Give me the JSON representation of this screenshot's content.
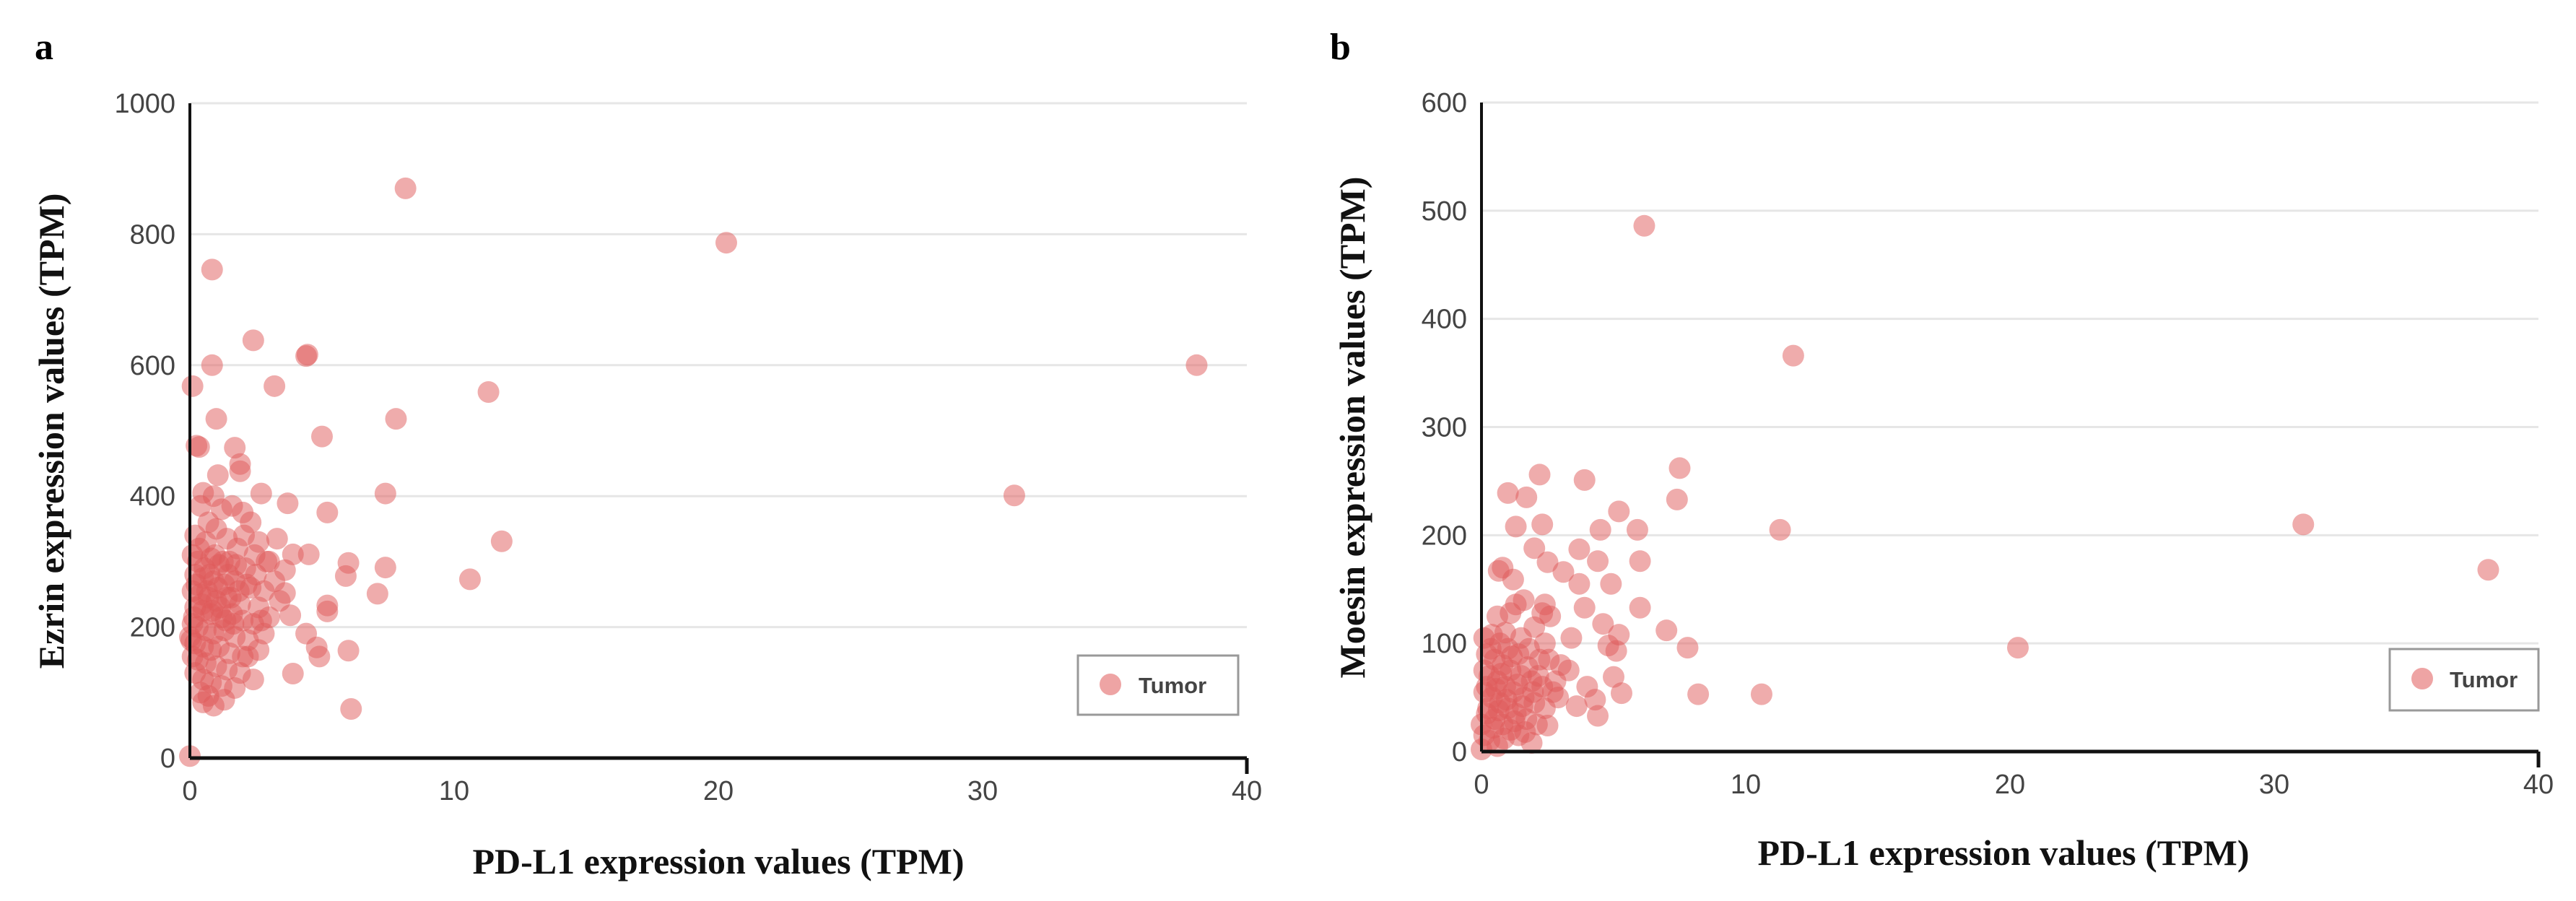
{
  "chart_data": [
    {
      "type": "scatter",
      "panel_label": "a",
      "xlabel": "PD-L1 expression values (TPM)",
      "ylabel": "Ezrin expression values (TPM)",
      "xlim": [
        0,
        40
      ],
      "ylim": [
        0,
        1000
      ],
      "xticks": [
        "0",
        "10",
        "20",
        "30",
        "40"
      ],
      "yticks": [
        "0",
        "200",
        "400",
        "600",
        "800",
        "1000"
      ],
      "grid": true,
      "legend": {
        "position": "bottom-right",
        "entries": [
          "Tumor"
        ]
      },
      "series": [
        {
          "name": "Tumor",
          "color": "#e05a5a",
          "points": [
            [
              8.16,
              870
            ],
            [
              20.3,
              787
            ],
            [
              38.1,
              600
            ],
            [
              31.2,
              401
            ],
            [
              0.84,
              746
            ],
            [
              2.4,
              638
            ],
            [
              4.4,
              614
            ],
            [
              4.45,
              616
            ],
            [
              0.84,
              600
            ],
            [
              0.1,
              568
            ],
            [
              3.2,
              568
            ],
            [
              11.3,
              559
            ],
            [
              1.0,
              518
            ],
            [
              7.8,
              518
            ],
            [
              5.0,
              491
            ],
            [
              0.25,
              477
            ],
            [
              0.35,
              475
            ],
            [
              1.7,
              474
            ],
            [
              1.9,
              449
            ],
            [
              1.9,
              438
            ],
            [
              1.06,
              432
            ],
            [
              2.7,
              404
            ],
            [
              7.4,
              404
            ],
            [
              3.7,
              389
            ],
            [
              5.2,
              375
            ],
            [
              11.8,
              331
            ],
            [
              10.6,
              273
            ],
            [
              7.4,
              291
            ],
            [
              7.1,
              251
            ],
            [
              6.0,
              298
            ],
            [
              5.9,
              278
            ],
            [
              4.5,
              311
            ],
            [
              3.9,
              311
            ],
            [
              6.0,
              164
            ],
            [
              6.1,
              75
            ],
            [
              0,
              3
            ],
            [
              4.9,
              155
            ],
            [
              4.8,
              169
            ],
            [
              5.2,
              224
            ],
            [
              5.2,
              233
            ],
            [
              3.9,
              129
            ],
            [
              4.4,
              190
            ],
            [
              3.8,
              218
            ],
            [
              3.6,
              252
            ],
            [
              3.6,
              287
            ],
            [
              3.3,
              335
            ],
            [
              3.0,
              300
            ],
            [
              2.4,
              120
            ],
            [
              1.7,
              107
            ],
            [
              1.3,
              89
            ],
            [
              2.2,
              155
            ],
            [
              0.5,
              405
            ],
            [
              0.9,
              400
            ],
            [
              1.2,
              380
            ],
            [
              0.4,
              385
            ],
            [
              1.6,
              385
            ],
            [
              2.0,
              375
            ],
            [
              2.3,
              360
            ],
            [
              0.7,
              360
            ],
            [
              1.0,
              350
            ],
            [
              0.2,
              340
            ],
            [
              0.6,
              330
            ],
            [
              1.4,
              335
            ],
            [
              1.8,
              320
            ],
            [
              2.6,
              330
            ],
            [
              2.9,
              300
            ],
            [
              0.1,
              310
            ],
            [
              0.3,
              300
            ],
            [
              0.8,
              305
            ],
            [
              1.1,
              295
            ],
            [
              1.5,
              300
            ],
            [
              2.1,
              290
            ],
            [
              2.5,
              280
            ],
            [
              0.2,
              280
            ],
            [
              0.5,
              275
            ],
            [
              0.9,
              270
            ],
            [
              1.3,
              265
            ],
            [
              1.7,
              270
            ],
            [
              2.3,
              260
            ],
            [
              2.8,
              255
            ],
            [
              0.1,
              255
            ],
            [
              0.4,
              250
            ],
            [
              0.7,
              245
            ],
            [
              1.0,
              240
            ],
            [
              1.4,
              245
            ],
            [
              1.9,
              235
            ],
            [
              2.6,
              230
            ],
            [
              3.4,
              240
            ],
            [
              0.2,
              230
            ],
            [
              0.5,
              225
            ],
            [
              0.8,
              220
            ],
            [
              1.2,
              215
            ],
            [
              1.6,
              220
            ],
            [
              2.0,
              210
            ],
            [
              2.4,
              205
            ],
            [
              3.0,
              215
            ],
            [
              0.1,
              205
            ],
            [
              0.3,
              200
            ],
            [
              0.6,
              195
            ],
            [
              0.9,
              190
            ],
            [
              1.3,
              195
            ],
            [
              1.7,
              185
            ],
            [
              2.2,
              180
            ],
            [
              2.8,
              190
            ],
            [
              0.05,
              180
            ],
            [
              0.2,
              175
            ],
            [
              0.5,
              170
            ],
            [
              0.8,
              165
            ],
            [
              1.1,
              170
            ],
            [
              1.5,
              160
            ],
            [
              2.0,
              155
            ],
            [
              2.6,
              165
            ],
            [
              0.1,
              155
            ],
            [
              0.3,
              150
            ],
            [
              0.6,
              145
            ],
            [
              1.0,
              140
            ],
            [
              1.4,
              135
            ],
            [
              1.9,
              130
            ],
            [
              0.2,
              130
            ],
            [
              0.5,
              120
            ],
            [
              0.8,
              115
            ],
            [
              1.2,
              110
            ],
            [
              0.4,
              100
            ],
            [
              0.7,
              95
            ],
            [
              0.5,
              85
            ],
            [
              0.9,
              80
            ],
            [
              0.0,
              185
            ],
            [
              0.15,
              215
            ],
            [
              0.25,
              265
            ],
            [
              0.35,
              320
            ],
            [
              0.45,
              235
            ],
            [
              0.55,
              290
            ],
            [
              0.65,
              255
            ],
            [
              0.75,
              280
            ],
            [
              0.85,
              225
            ],
            [
              0.95,
              310
            ],
            [
              1.05,
              260
            ],
            [
              1.15,
              230
            ],
            [
              1.25,
              300
            ],
            [
              1.35,
              210
            ],
            [
              1.45,
              280
            ],
            [
              1.55,
              245
            ],
            [
              1.65,
              205
            ],
            [
              1.75,
              295
            ],
            [
              1.85,
              255
            ],
            [
              2.05,
              340
            ],
            [
              2.15,
              265
            ],
            [
              2.45,
              310
            ],
            [
              2.7,
              210
            ],
            [
              3.2,
              270
            ]
          ]
        }
      ]
    },
    {
      "type": "scatter",
      "panel_label": "b",
      "xlabel": "PD-L1 expression values (TPM)",
      "ylabel": "Moesin expression values (TPM)",
      "xlim": [
        0,
        40
      ],
      "ylim": [
        0,
        600
      ],
      "xticks": [
        "0",
        "10",
        "20",
        "30",
        "40"
      ],
      "yticks": [
        "0",
        "100",
        "200",
        "300",
        "400",
        "500",
        "600"
      ],
      "grid": true,
      "legend": {
        "position": "bottom-right",
        "entries": [
          "Tumor"
        ]
      },
      "series": [
        {
          "name": "Tumor",
          "color": "#e05a5a",
          "points": [
            [
              6.16,
              486
            ],
            [
              11.8,
              366
            ],
            [
              7.5,
              262
            ],
            [
              7.4,
              233
            ],
            [
              2.2,
              256
            ],
            [
              3.9,
              251
            ],
            [
              1.0,
              239
            ],
            [
              1.7,
              235
            ],
            [
              5.2,
              222
            ],
            [
              1.3,
              208
            ],
            [
              2.3,
              210
            ],
            [
              4.5,
              205
            ],
            [
              5.9,
              205
            ],
            [
              11.3,
              205
            ],
            [
              31.1,
              210
            ],
            [
              38.1,
              168
            ],
            [
              20.3,
              96
            ],
            [
              10.6,
              53
            ],
            [
              8.2,
              53
            ],
            [
              7.8,
              96
            ],
            [
              7.0,
              112
            ],
            [
              6.0,
              176
            ],
            [
              6.0,
              133
            ],
            [
              2.0,
              188
            ],
            [
              3.7,
              187
            ],
            [
              2.5,
              175
            ],
            [
              4.4,
              176
            ],
            [
              3.1,
              166
            ],
            [
              0.65,
              167
            ],
            [
              1.2,
              159
            ],
            [
              3.7,
              155
            ],
            [
              4.9,
              155
            ],
            [
              3.9,
              133
            ],
            [
              1.3,
              136
            ],
            [
              2.4,
              136
            ],
            [
              5.2,
              108
            ],
            [
              5.3,
              54
            ],
            [
              5.0,
              69
            ],
            [
              4.4,
              33
            ],
            [
              2.5,
              24
            ],
            [
              1.9,
              8
            ],
            [
              0.8,
              170
            ],
            [
              1.6,
              140
            ],
            [
              2.6,
              125
            ],
            [
              3.4,
              105
            ],
            [
              4.6,
              118
            ],
            [
              4.8,
              98
            ],
            [
              5.1,
              93
            ],
            [
              3.0,
              80
            ],
            [
              3.3,
              75
            ],
            [
              4.0,
              60
            ],
            [
              4.3,
              48
            ],
            [
              3.6,
              42
            ],
            [
              2.9,
              50
            ],
            [
              0.1,
              105
            ],
            [
              0.4,
              108
            ],
            [
              0.7,
              100
            ],
            [
              1.0,
              95
            ],
            [
              1.4,
              90
            ],
            [
              1.8,
              95
            ],
            [
              2.2,
              85
            ],
            [
              0.2,
              90
            ],
            [
              0.5,
              85
            ],
            [
              0.8,
              80
            ],
            [
              1.1,
              75
            ],
            [
              1.5,
              70
            ],
            [
              1.9,
              65
            ],
            [
              2.3,
              60
            ],
            [
              2.7,
              55
            ],
            [
              0.1,
              75
            ],
            [
              0.3,
              70
            ],
            [
              0.6,
              65
            ],
            [
              0.9,
              60
            ],
            [
              1.2,
              55
            ],
            [
              1.6,
              50
            ],
            [
              2.0,
              45
            ],
            [
              2.4,
              40
            ],
            [
              0.1,
              55
            ],
            [
              0.4,
              50
            ],
            [
              0.7,
              45
            ],
            [
              1.0,
              40
            ],
            [
              1.3,
              35
            ],
            [
              1.7,
              30
            ],
            [
              2.1,
              25
            ],
            [
              0.2,
              35
            ],
            [
              0.5,
              30
            ],
            [
              0.8,
              25
            ],
            [
              1.1,
              20
            ],
            [
              1.4,
              15
            ],
            [
              0.1,
              15
            ],
            [
              0.3,
              10
            ],
            [
              0.6,
              5
            ],
            [
              0.0,
              2
            ],
            [
              0.0,
              25
            ],
            [
              0.9,
              110
            ],
            [
              1.5,
              105
            ],
            [
              2.0,
              115
            ],
            [
              2.4,
              100
            ],
            [
              0.35,
              95
            ],
            [
              0.55,
              58
            ],
            [
              0.75,
              72
            ],
            [
              0.95,
              48
            ],
            [
              1.15,
              88
            ],
            [
              1.35,
              62
            ],
            [
              1.55,
              42
            ],
            [
              1.75,
              78
            ],
            [
              1.95,
              55
            ],
            [
              2.15,
              70
            ],
            [
              2.55,
              85
            ],
            [
              2.8,
              65
            ],
            [
              0.25,
              40
            ],
            [
              0.45,
              22
            ],
            [
              0.65,
              38
            ],
            [
              0.85,
              12
            ],
            [
              1.25,
              28
            ],
            [
              1.65,
              18
            ],
            [
              2.3,
              128
            ],
            [
              1.1,
              128
            ],
            [
              0.6,
              125
            ],
            [
              0.2,
              60
            ]
          ]
        }
      ]
    }
  ]
}
